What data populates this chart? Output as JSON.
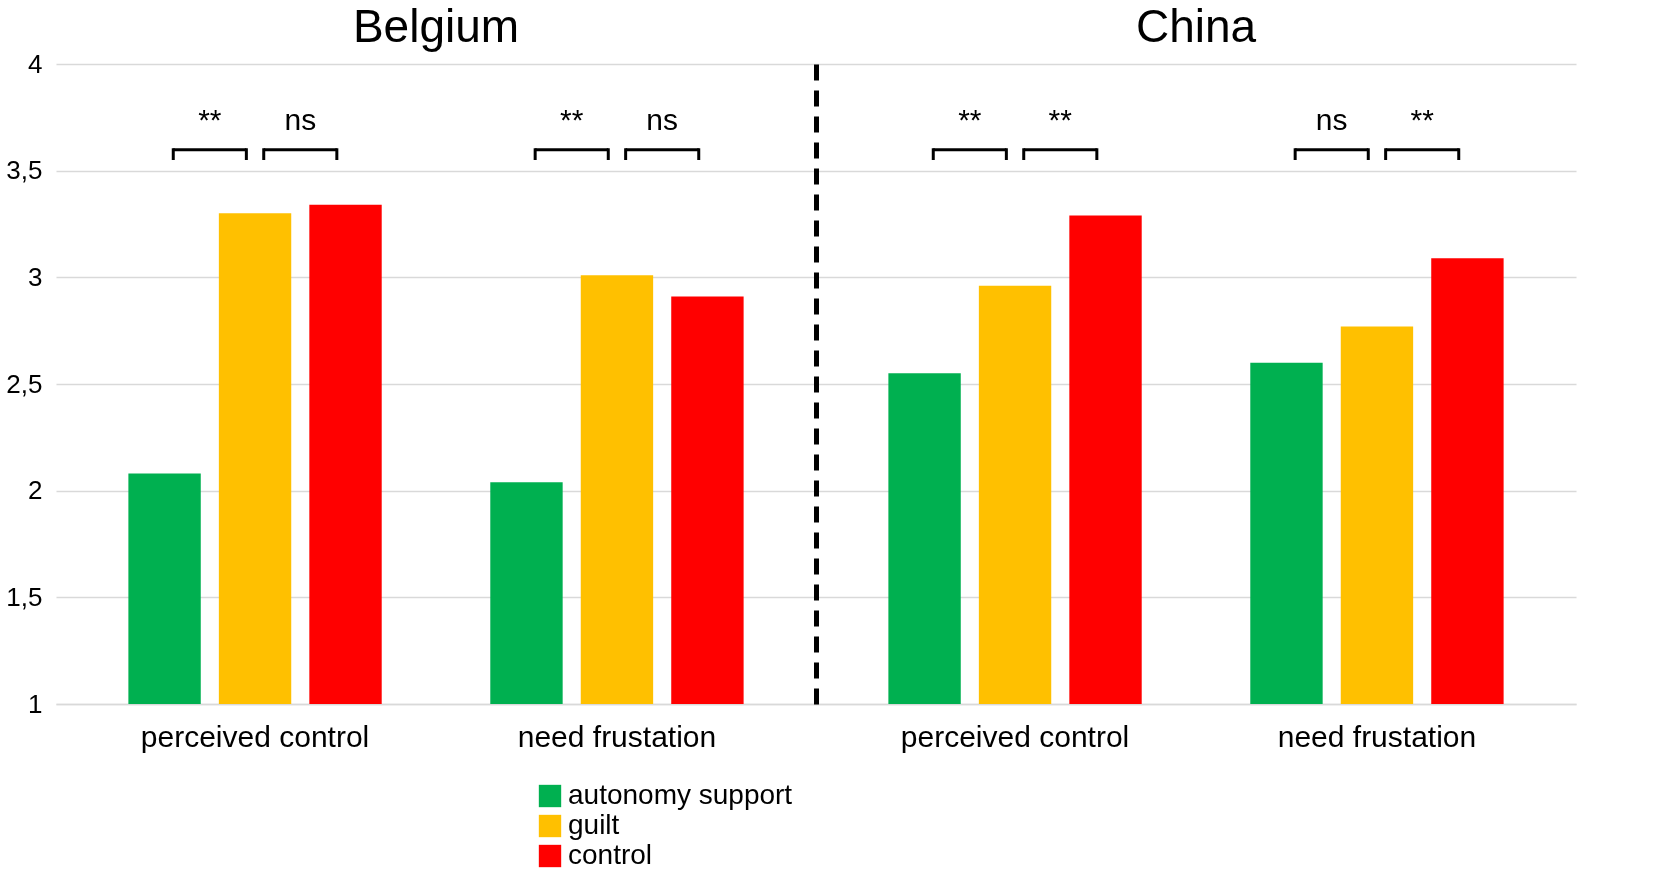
{
  "chart_data": [
    {
      "type": "bar",
      "title": "Belgium",
      "categories": [
        "perceived control",
        "need frustation"
      ],
      "series": [
        {
          "name": "autonomy support",
          "color": "#00b050",
          "values": [
            2.08,
            2.04
          ]
        },
        {
          "name": "guilt",
          "color": "#ffc000",
          "values": [
            3.3,
            3.01
          ]
        },
        {
          "name": "control",
          "color": "#ff0000",
          "values": [
            3.34,
            2.91
          ]
        }
      ],
      "ylim": [
        1,
        4
      ],
      "yticks": [
        1,
        {
          "value": 1.5,
          "label": "1,5"
        },
        2,
        {
          "value": 2.5,
          "label": "2,5"
        },
        3,
        {
          "value": 3.5,
          "label": "3,5"
        },
        4
      ],
      "grid": "y",
      "legend": "bottom",
      "annotations": [
        "**",
        "ns",
        "**",
        "ns"
      ]
    },
    {
      "type": "bar",
      "title": "China",
      "categories": [
        "perceived control",
        "need frustation"
      ],
      "series": [
        {
          "color": "#00b050",
          "values": [
            2.55,
            2.6
          ]
        },
        {
          "color": "#ffc000",
          "values": [
            2.96,
            2.77
          ]
        },
        {
          "color": "#ff0000",
          "values": [
            3.29,
            3.09
          ]
        }
      ],
      "ylim": [
        1,
        4
      ],
      "yticks": [
        1,
        1.5,
        2,
        2.5,
        3,
        3.5,
        4
      ],
      "grid": "y",
      "tick_labels": "x",
      "annotations": [
        "**",
        "**",
        "ns",
        "**"
      ]
    }
  ]
}
